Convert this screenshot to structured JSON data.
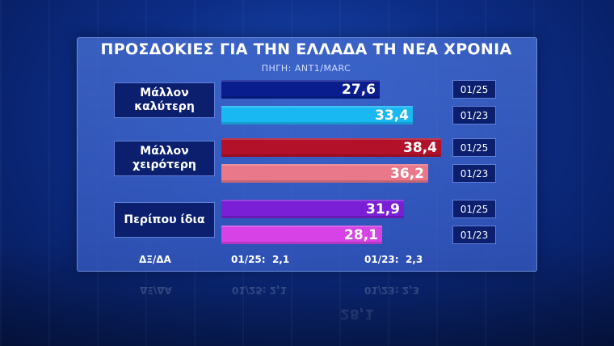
{
  "chart_data": {
    "type": "bar",
    "title": "ΠΡΟΣΔΟΚΙΕΣ ΓΙΑ ΤΗΝ ΕΛΛΑΔΑ ΤΗ ΝΕΑ ΧΡΟΝΙΑ",
    "subtitle": "ΠΗΓΗ: ANT1/MARC",
    "orientation": "horizontal",
    "categories": [
      "Μάλλον καλύτερη",
      "Μάλλον χειρότερη",
      "Περίπου ίδια"
    ],
    "series": [
      {
        "name": "01/25",
        "values": [
          27.6,
          38.4,
          31.9
        ],
        "labels": [
          "27,6",
          "38,4",
          "31,9"
        ]
      },
      {
        "name": "01/23",
        "values": [
          33.4,
          36.2,
          28.1
        ],
        "labels": [
          "33,4",
          "36,2",
          "28,1"
        ]
      }
    ],
    "xlim": [
      0,
      48
    ],
    "grid": false,
    "colors": {
      "Μάλλον καλύτερη": [
        "#0a1d8f",
        "#1ab8f2"
      ],
      "Μάλλον χειρότερη": [
        "#b3102a",
        "#e8788a"
      ],
      "Περίπου ίδια": [
        "#7a1fd6",
        "#d642e6"
      ]
    },
    "footer": {
      "label": "ΔΞ/ΔΑ",
      "items": [
        {
          "period": "01/25:",
          "value": "2,1"
        },
        {
          "period": "01/23:",
          "value": "2,3"
        }
      ]
    }
  }
}
